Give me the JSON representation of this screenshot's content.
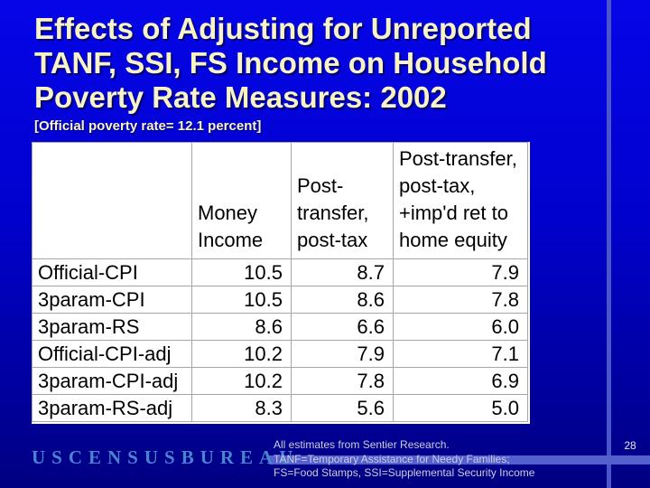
{
  "slide": {
    "title_lines": [
      "Effects of Adjusting for Unreported",
      "TANF, SSI, FS Income on Household",
      "Poverty Rate Measures: 2002"
    ],
    "subtitle": "[Official poverty rate= 12.1 percent]",
    "page_number": "28"
  },
  "table": {
    "column_headers": [
      "",
      "Money Income",
      "Post-transfer, post-tax",
      "Post-transfer, post-tax, +imp'd ret to home equity"
    ],
    "rows": [
      {
        "label": "Official-CPI",
        "values": [
          "10.5",
          "8.7",
          "7.9"
        ]
      },
      {
        "label": "3param-CPI",
        "values": [
          "10.5",
          "8.6",
          "7.8"
        ]
      },
      {
        "label": "3param-RS",
        "values": [
          "8.6",
          "6.6",
          "6.0"
        ]
      },
      {
        "label": "Official-CPI-adj",
        "values": [
          "10.2",
          "7.9",
          "7.1"
        ]
      },
      {
        "label": "3param-CPI-adj",
        "values": [
          "10.2",
          "7.8",
          "6.9"
        ]
      },
      {
        "label": "3param-RS-adj",
        "values": [
          "8.3",
          "5.6",
          "5.0"
        ]
      }
    ]
  },
  "footer": {
    "logo_text": "USCENSUSBUREAU",
    "notes": [
      "All estimates from Sentier Research.",
      "TANF=Temporary Assistance for Needy Families;",
      "FS=Food Stamps, SSI=Supplemental Security Income"
    ]
  },
  "colors": {
    "background_top": "#0505e8",
    "background_bottom": "#000082",
    "title_text": "#f8f3c6",
    "accent_stripe": "#5560cf",
    "vertical_line": "#4a55c9",
    "logo_blue": "#4a84cf",
    "note_text": "#ccccdf",
    "table_border": "#a6a6a6"
  }
}
